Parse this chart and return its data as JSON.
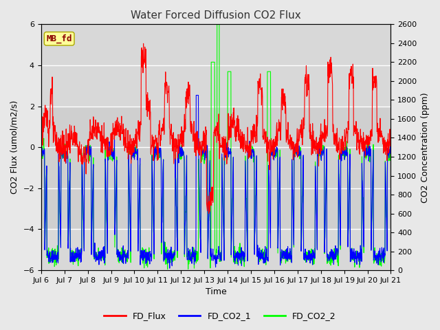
{
  "title": "Water Forced Diffusion CO2 Flux",
  "xlabel": "Time",
  "ylabel_left": "CO2 Flux (umol/m2/s)",
  "ylabel_right": "CO2 Concentration (ppm)",
  "ylim_left": [
    -6,
    6
  ],
  "ylim_right": [
    0,
    2600
  ],
  "yticks_left": [
    -6,
    -4,
    -2,
    0,
    2,
    4,
    6
  ],
  "yticks_right": [
    0,
    200,
    400,
    600,
    800,
    1000,
    1200,
    1400,
    1600,
    1800,
    2000,
    2200,
    2400,
    2600
  ],
  "xtick_labels": [
    "Jul 6",
    "Jul 7",
    "Jul 8",
    "Jul 9",
    "Jul 10",
    "Jul 11",
    "Jul 12",
    "Jul 13",
    "Jul 14",
    "Jul 15",
    "Jul 16",
    "Jul 17",
    "Jul 18",
    "Jul 19",
    "Jul 20",
    "Jul 21"
  ],
  "legend_labels": [
    "FD_Flux",
    "FD_CO2_1",
    "FD_CO2_2"
  ],
  "line_colors": [
    "red",
    "blue",
    "lime"
  ],
  "mb_fd_text": "MB_fd",
  "mb_fd_bg": "#ffff99",
  "mb_fd_text_color": "#8b0000",
  "background_color": "#e8e8e8",
  "plot_bg_inner": "#d8d8d8",
  "title_color": "#333333",
  "grid_color": "white",
  "shaded_band_color": "#c8c8c8"
}
